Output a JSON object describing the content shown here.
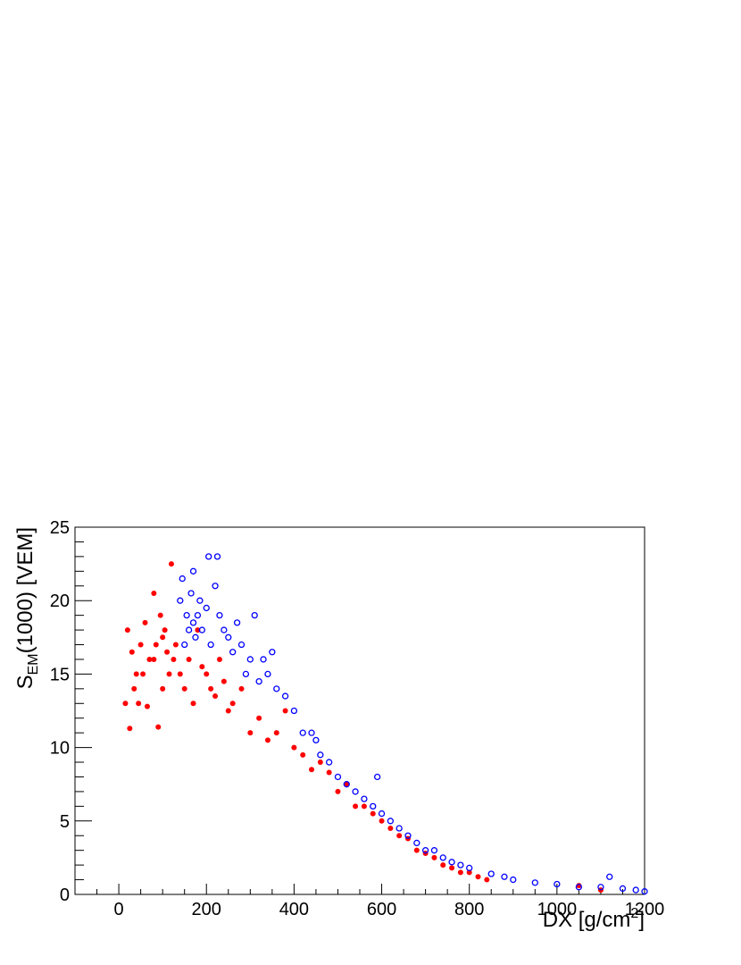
{
  "chart_data": {
    "type": "scatter",
    "x_label_parts": [
      "DX [g/cm",
      "2",
      "]"
    ],
    "y_label_parts": [
      "S",
      "EM",
      "(1000) [VEM]"
    ],
    "xlim": [
      -100,
      1200
    ],
    "ylim": [
      0,
      25
    ],
    "xticks": [
      0,
      200,
      400,
      600,
      800,
      1000,
      1200
    ],
    "yticks": [
      0,
      5,
      10,
      15,
      20,
      25
    ],
    "xminorticks": [
      -100,
      -50,
      50,
      100,
      150,
      250,
      300,
      350,
      450,
      500,
      550,
      650,
      700,
      750,
      850,
      900,
      950,
      1050,
      1100,
      1150
    ],
    "yminorticks": [
      1,
      2,
      3,
      4,
      6,
      7,
      8,
      9,
      11,
      12,
      13,
      14,
      16,
      17,
      18,
      19,
      21,
      22,
      23,
      24
    ],
    "series": [
      {
        "color": "#ff0000",
        "marker": "filled",
        "x": [
          15,
          20,
          25,
          30,
          35,
          40,
          45,
          50,
          55,
          60,
          65,
          70,
          80,
          80,
          85,
          90,
          95,
          100,
          100,
          105,
          110,
          115,
          120,
          125,
          130,
          140,
          150,
          160,
          170,
          180,
          190,
          200,
          210,
          220,
          230,
          240,
          250,
          260,
          280,
          300,
          320,
          340,
          360,
          380,
          400,
          420,
          440,
          460,
          480,
          500,
          520,
          540,
          560,
          580,
          600,
          620,
          640,
          660,
          680,
          700,
          720,
          740,
          760,
          780,
          800,
          820,
          840,
          1050,
          1100
        ],
        "values": [
          13,
          18,
          11.3,
          16.5,
          14,
          15,
          13,
          17,
          15,
          18.5,
          12.8,
          16,
          20.5,
          16,
          17,
          11.4,
          19,
          17.5,
          14,
          18,
          16.5,
          15,
          22.5,
          16,
          17,
          15,
          14,
          16,
          13,
          18,
          15.5,
          15,
          14,
          13.5,
          16,
          14.5,
          12.5,
          13,
          14,
          11,
          12,
          10.5,
          11,
          12.5,
          10,
          9.5,
          8.5,
          9,
          8.3,
          7,
          7.5,
          6,
          6,
          5.5,
          5,
          4.5,
          4,
          3.8,
          3,
          2.8,
          2.5,
          2,
          1.8,
          1.5,
          1.5,
          1.2,
          1,
          0.6,
          0.3
        ]
      },
      {
        "color": "#0000ff",
        "marker": "open",
        "x": [
          140,
          145,
          150,
          155,
          160,
          165,
          170,
          170,
          175,
          180,
          185,
          190,
          200,
          205,
          210,
          220,
          225,
          230,
          240,
          250,
          260,
          270,
          280,
          290,
          300,
          310,
          320,
          330,
          340,
          350,
          360,
          380,
          400,
          420,
          440,
          450,
          460,
          480,
          500,
          520,
          540,
          560,
          580,
          590,
          600,
          620,
          640,
          660,
          680,
          700,
          720,
          740,
          760,
          780,
          800,
          850,
          880,
          900,
          950,
          1000,
          1050,
          1100,
          1120,
          1150,
          1180,
          1200
        ],
        "values": [
          20,
          21.5,
          17,
          19,
          18,
          20.5,
          22,
          18.5,
          17.5,
          19,
          20,
          18,
          19.5,
          23,
          17,
          21,
          23,
          19,
          18,
          17.5,
          16.5,
          18.5,
          17,
          15,
          16,
          19,
          14.5,
          16,
          15,
          16.5,
          14,
          13.5,
          12.5,
          11,
          11,
          10.5,
          9.5,
          9,
          8,
          7.5,
          7,
          6.5,
          6,
          8,
          5.5,
          5,
          4.5,
          4,
          3.5,
          3,
          3,
          2.5,
          2.2,
          2,
          1.8,
          1.4,
          1.2,
          1,
          0.8,
          0.7,
          0.5,
          0.5,
          1.2,
          0.4,
          0.3,
          0.2
        ]
      }
    ]
  }
}
